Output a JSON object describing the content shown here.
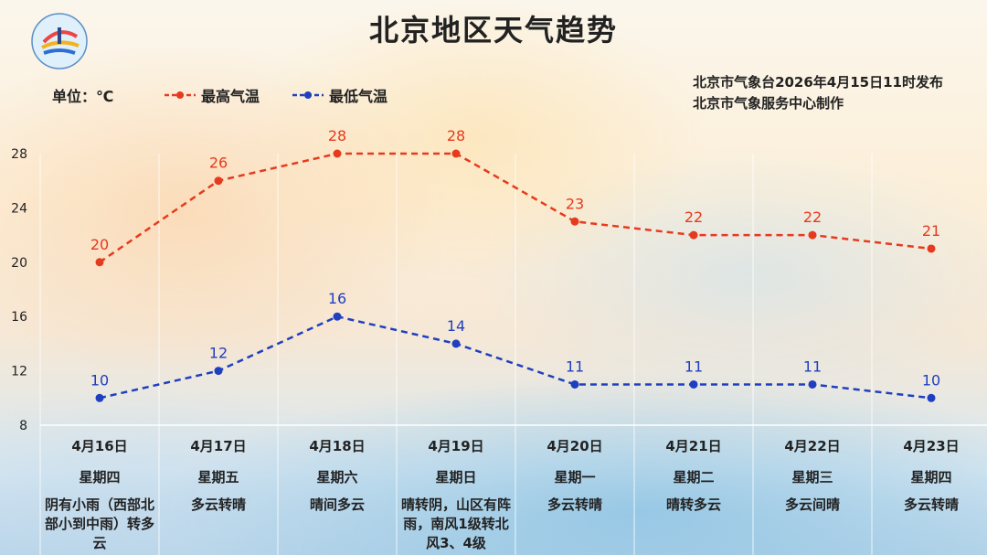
{
  "title": "北京地区天气趋势",
  "unit_label": "单位：℃",
  "legend": {
    "high": "最高气温",
    "low": "最低气温"
  },
  "issuer": {
    "line1": "北京市气象台2026年4月15日11时发布",
    "line2": "北京市气象服务中心制作"
  },
  "logo": {
    "text_top": "METEOROLOGICAL SERVICE",
    "text_bottom": "BEIJING",
    "text_cn": "气象北京"
  },
  "colors": {
    "high": "#e63a1e",
    "low": "#1f3fbf",
    "grid": "#ffffff"
  },
  "chart_data": {
    "type": "line",
    "categories": [
      "4月16日",
      "4月17日",
      "4月18日",
      "4月19日",
      "4月20日",
      "4月21日",
      "4月22日",
      "4月23日"
    ],
    "series": [
      {
        "name": "最高气温",
        "values": [
          20,
          26,
          28,
          28,
          23,
          22,
          22,
          21
        ]
      },
      {
        "name": "最低气温",
        "values": [
          10,
          12,
          16,
          14,
          11,
          11,
          11,
          10
        ]
      }
    ],
    "yticks": [
      8,
      12,
      16,
      20,
      24,
      28
    ],
    "ylim": [
      8,
      28
    ],
    "grid": true
  },
  "days": [
    {
      "date": "4月16日",
      "weekday": "星期四",
      "condition": "阴有小雨（西部北部小到中雨）转多云"
    },
    {
      "date": "4月17日",
      "weekday": "星期五",
      "condition": "多云转晴"
    },
    {
      "date": "4月18日",
      "weekday": "星期六",
      "condition": "晴间多云"
    },
    {
      "date": "4月19日",
      "weekday": "星期日",
      "condition": "晴转阴，山区有阵雨，南风1级转北风3、4级"
    },
    {
      "date": "4月20日",
      "weekday": "星期一",
      "condition": "多云转晴"
    },
    {
      "date": "4月21日",
      "weekday": "星期二",
      "condition": "晴转多云"
    },
    {
      "date": "4月22日",
      "weekday": "星期三",
      "condition": "多云间晴"
    },
    {
      "date": "4月23日",
      "weekday": "星期四",
      "condition": "多云转晴"
    }
  ]
}
